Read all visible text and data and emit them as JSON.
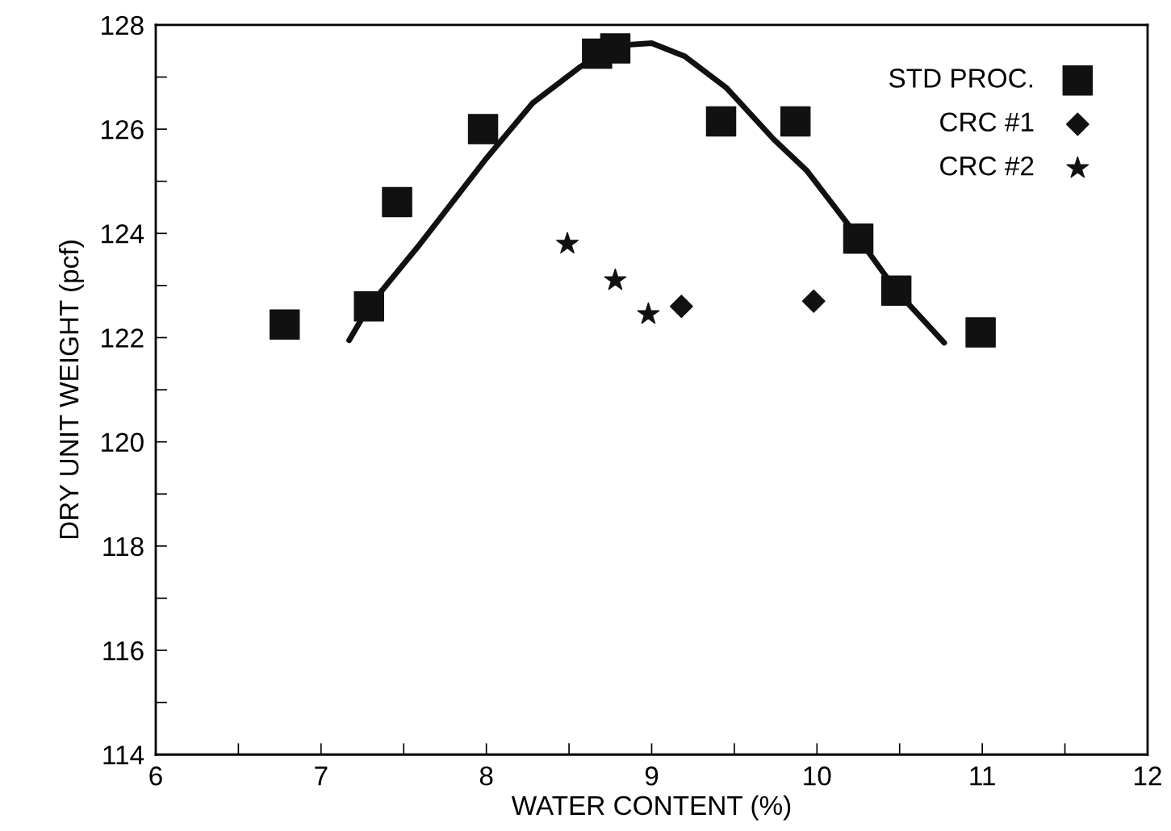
{
  "chart_data": {
    "type": "scatter",
    "xlabel": "WATER CONTENT (%)",
    "ylabel": "DRY UNIT WEIGHT (pcf)",
    "xlim": [
      6,
      12
    ],
    "ylim": [
      114,
      128
    ],
    "xticks": [
      6,
      {
        "value": 6.5,
        "label": null
      },
      7,
      {
        "value": 7.5,
        "label": null
      },
      8,
      {
        "value": 8.5,
        "label": null
      },
      9,
      {
        "value": 9.5,
        "label": null
      },
      10,
      {
        "value": 10.5,
        "label": null
      },
      11,
      {
        "value": 11.5,
        "label": null
      },
      12
    ],
    "yticks": [
      114,
      {
        "value": 115,
        "label": null
      },
      116,
      {
        "value": 117,
        "label": null
      },
      118,
      {
        "value": 119,
        "label": null
      },
      120,
      {
        "value": 121,
        "label": null
      },
      122,
      {
        "value": 123,
        "label": null
      },
      124,
      {
        "value": 125,
        "label": null
      },
      126,
      {
        "value": 127,
        "label": null
      },
      128
    ],
    "grid": false,
    "legend": "top right",
    "series": [
      {
        "name": "STD PROC.",
        "color": "#111111",
        "marker": "square",
        "x": [
          6.78,
          7.29,
          7.46,
          7.98,
          8.67,
          8.78,
          9.42,
          9.87,
          10.25,
          10.48,
          10.99
        ],
        "values": [
          122.25,
          122.6,
          124.6,
          126.0,
          127.45,
          127.55,
          126.15,
          126.15,
          123.9,
          122.9,
          122.1
        ]
      },
      {
        "name": "CRC #1",
        "color": "#111111",
        "marker": "diamond",
        "x": [
          9.18,
          9.98
        ],
        "values": [
          122.6,
          122.7
        ]
      },
      {
        "name": "CRC #2",
        "color": "#111111",
        "marker": "star",
        "x": [
          8.49,
          8.78,
          8.98
        ],
        "values": [
          123.8,
          123.1,
          122.45
        ]
      },
      {
        "type": "line",
        "color": "#111111",
        "marker": "none",
        "line_style": "solid",
        "x": [
          7.17,
          7.29,
          7.6,
          7.99,
          8.28,
          8.57,
          8.77,
          9.0,
          9.2,
          9.45,
          9.74,
          9.94,
          10.23,
          10.48,
          10.77
        ],
        "values": [
          121.95,
          122.6,
          123.8,
          125.4,
          126.5,
          127.2,
          127.6,
          127.65,
          127.4,
          126.8,
          125.8,
          125.2,
          124.0,
          122.9,
          121.9
        ]
      }
    ]
  }
}
